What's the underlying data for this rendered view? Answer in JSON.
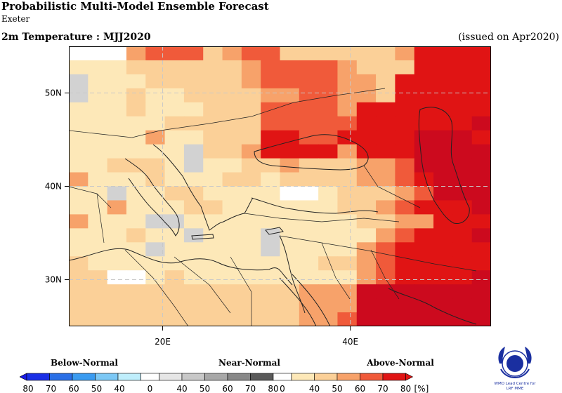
{
  "header": {
    "title": "Probabilistic Multi-Model Ensemble Forecast",
    "subtitle": "Exeter",
    "variable": "2m Temperature : MJJ2020",
    "issued": "(issued on Apr2020)"
  },
  "map": {
    "lon_range": [
      10,
      55
    ],
    "lat_range": [
      25,
      55
    ],
    "lat_ticks": [
      {
        "value": 50,
        "label": "50N"
      },
      {
        "value": 40,
        "label": "40N"
      },
      {
        "value": 30,
        "label": "30N"
      }
    ],
    "lon_ticks": [
      {
        "value": 20,
        "label": "20E"
      },
      {
        "value": 40,
        "label": "40E"
      }
    ],
    "grid_lines": "dashed",
    "ocean_color": "#ffffff",
    "cell_size_degrees": 2.5
  },
  "legend": {
    "below_label": "Below-Normal",
    "near_label": "Near-Normal",
    "above_label": "Above-Normal",
    "unit": "[%]",
    "labels": [
      "80",
      "70",
      "60",
      "50",
      "40",
      "0",
      "40",
      "50",
      "60",
      "70",
      "80",
      "0",
      "40",
      "50",
      "60",
      "70",
      "80"
    ],
    "colors": {
      "below": [
        "#1a2fe6",
        "#2a6fe6",
        "#3a9bf0",
        "#7cc8f5",
        "#bfeefc"
      ],
      "near": [
        "#e6e6e6",
        "#c8c8c8",
        "#a8a8a8",
        "#888888",
        "#5a5a5a"
      ],
      "above": [
        "#fde8b8",
        "#fbd098",
        "#f7a26a",
        "#f05a3a",
        "#e01414"
      ]
    }
  },
  "logo": {
    "caption_line1": "WMO Lead Centre for",
    "caption_line2": "LRF MME"
  }
}
